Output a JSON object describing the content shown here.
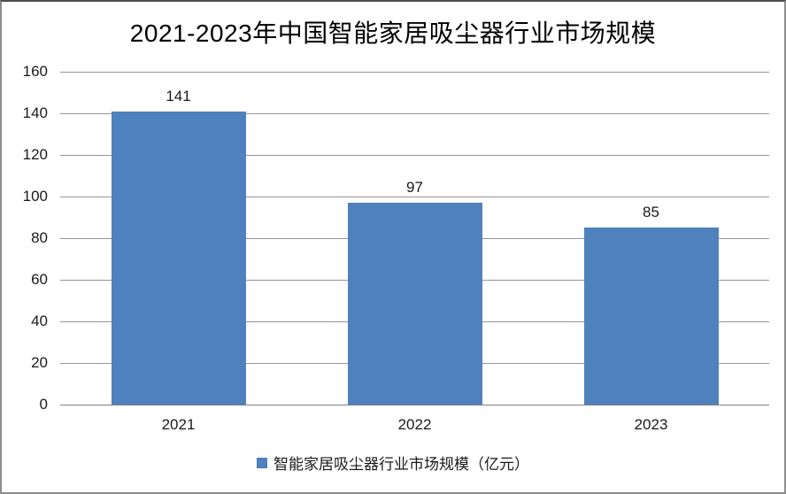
{
  "chart_data": {
    "type": "bar",
    "title": "2021-2023年中国智能家居吸尘器行业市场规模",
    "categories": [
      "2021",
      "2022",
      "2023"
    ],
    "values": [
      141,
      97,
      85
    ],
    "data_labels": [
      "141",
      "97",
      "85"
    ],
    "ylim": [
      0,
      160
    ],
    "yticks": [
      0,
      20,
      40,
      60,
      80,
      100,
      120,
      140,
      160
    ],
    "grid": true,
    "legend": {
      "label": "智能家居吸尘器行业市场规模（亿元）",
      "position": "bottom",
      "marker": "square-icon"
    },
    "colors": {
      "bar": "#4f81bd",
      "gridline": "#969696",
      "axis_line": "#7f7f7f",
      "text": "#1a1a1a",
      "background": "#ffffff",
      "frame_border": "#8c8c8c"
    }
  }
}
